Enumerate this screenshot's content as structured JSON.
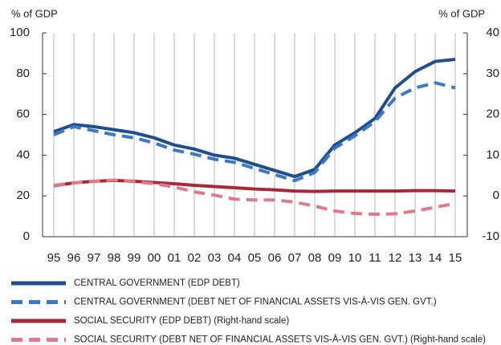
{
  "chart_data": {
    "type": "line",
    "y_label": "% of GDP",
    "y2_label": "% of GDP",
    "categories": [
      "95",
      "96",
      "97",
      "98",
      "99",
      "00",
      "01",
      "02",
      "03",
      "04",
      "05",
      "06",
      "07",
      "08",
      "09",
      "10",
      "11",
      "12",
      "13",
      "14",
      "15"
    ],
    "ylim": [
      0,
      100
    ],
    "yticks": [
      0,
      20,
      40,
      60,
      80,
      100
    ],
    "y2lim": [
      -10,
      40
    ],
    "y2ticks": [
      -10,
      0,
      10,
      20,
      30,
      40
    ],
    "grid": "vertical",
    "series": [
      {
        "name": "CENTRAL GOVERNMENT (EDP DEBT)",
        "color": "#1f4e8c",
        "dashed": false,
        "axis": "y",
        "values": [
          51.5,
          55,
          54,
          52.5,
          51,
          48.5,
          45,
          43,
          40,
          38.5,
          35.5,
          32.5,
          29.5,
          33,
          45,
          51,
          58,
          73,
          81,
          86,
          87
        ]
      },
      {
        "name": "CENTRAL GOVERNMENT (DEBT NET OF FINANCIAL ASSETS VIS-À-VIS GEN. GVT.)",
        "color": "#3e78c4",
        "dashed": true,
        "axis": "y",
        "values": [
          50,
          54,
          52,
          50,
          48.5,
          46,
          42.5,
          40.5,
          38,
          36.5,
          33.5,
          30.5,
          27.5,
          31.5,
          43.5,
          49.5,
          56.5,
          68,
          73,
          75.5,
          73
        ]
      },
      {
        "name": "SOCIAL SECURITY (EDP DEBT) (Right-hand scale)",
        "color": "#a8283a",
        "dashed": false,
        "axis": "y2",
        "values": [
          2.5,
          3.2,
          3.6,
          3.8,
          3.6,
          3.3,
          3.0,
          2.6,
          2.3,
          2.0,
          1.7,
          1.5,
          1.2,
          1.1,
          1.2,
          1.2,
          1.2,
          1.2,
          1.3,
          1.3,
          1.2
        ]
      },
      {
        "name": "SOCIAL SECURITY (DEBT NET OF FINANCIAL ASSETS VIS-À-VIS GEN. GVT.) (Right-hand scale)",
        "color": "#e07a8a",
        "dashed": true,
        "axis": "y2",
        "values": [
          2.6,
          3.2,
          3.6,
          3.9,
          3.5,
          3.0,
          2.2,
          1.0,
          0.2,
          -0.8,
          -1.0,
          -1.0,
          -1.5,
          -2.5,
          -3.7,
          -4.3,
          -4.5,
          -4.4,
          -3.7,
          -2.8,
          -1.8
        ]
      }
    ]
  }
}
